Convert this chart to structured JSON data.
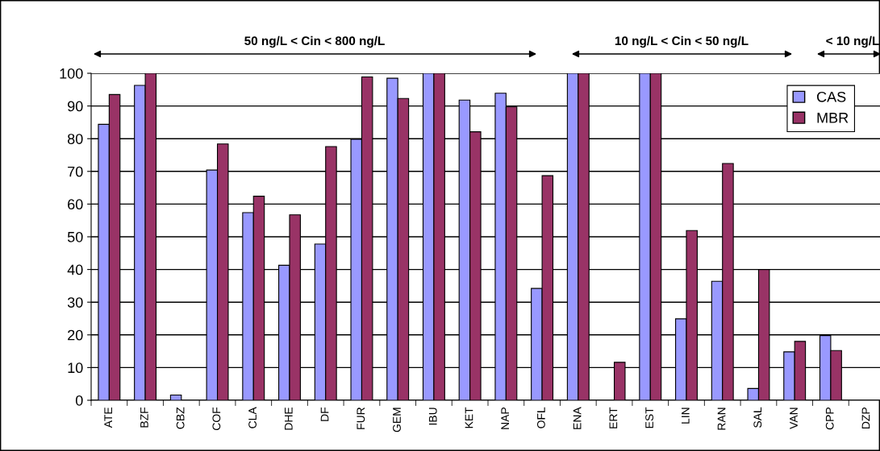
{
  "chart_data": {
    "type": "bar",
    "categories": [
      "ATE",
      "BZF",
      "CBZ",
      "COF",
      "CLA",
      "DHE",
      "DF",
      "FUR",
      "GEM",
      "IBU",
      "KET",
      "NAP",
      "OFL",
      "ENA",
      "ERT",
      "EST",
      "LIN",
      "RAN",
      "SAL",
      "VAN",
      "CPP",
      "DZP"
    ],
    "series": [
      {
        "name": "CAS",
        "color": "#9999ff",
        "values": [
          84.4,
          96.3,
          1.6,
          70.4,
          57.4,
          41.3,
          47.8,
          79.8,
          98.5,
          100,
          91.8,
          93.9,
          34.2,
          100,
          null,
          100,
          24.9,
          36.4,
          3.6,
          14.8,
          19.8,
          null
        ]
      },
      {
        "name": "MBR",
        "color": "#993366",
        "values": [
          93.5,
          100,
          null,
          78.4,
          62.4,
          56.7,
          77.6,
          98.9,
          92.3,
          100,
          82.1,
          89.7,
          68.7,
          100,
          11.6,
          100,
          51.9,
          72.4,
          40,
          18.0,
          15.2,
          null
        ]
      }
    ],
    "ylim": [
      0,
      100
    ],
    "yticks": [
      0,
      10,
      20,
      30,
      40,
      50,
      60,
      70,
      80,
      90,
      100
    ],
    "grid": "y",
    "legend": "top right",
    "annotations": [
      "50 ng/L < Cin < 800 ng/L",
      "10 ng/L < Cin < 50 ng/L",
      "< 10 ng/L"
    ]
  }
}
